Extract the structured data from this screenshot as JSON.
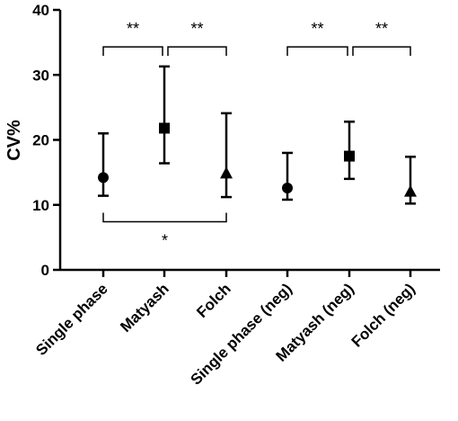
{
  "chart_data": {
    "type": "scatter",
    "ylabel": "CV%",
    "ylim": [
      0,
      40
    ],
    "yticks": [
      0,
      10,
      20,
      30,
      40
    ],
    "categories": [
      "Single phase",
      "Matyash",
      "Folch",
      "Single phase (neg)",
      "Matyash (neg)",
      "Folch (neg)"
    ],
    "points": [
      {
        "category": "Single phase",
        "value": 14.2,
        "low": 11.4,
        "high": 21.0,
        "marker": "circle"
      },
      {
        "category": "Matyash",
        "value": 21.8,
        "low": 16.4,
        "high": 31.3,
        "marker": "square"
      },
      {
        "category": "Folch",
        "value": 14.9,
        "low": 11.2,
        "high": 24.1,
        "marker": "triangle"
      },
      {
        "category": "Single phase (neg)",
        "value": 12.6,
        "low": 10.8,
        "high": 18.0,
        "marker": "circle"
      },
      {
        "category": "Matyash (neg)",
        "value": 17.5,
        "low": 14.0,
        "high": 22.8,
        "marker": "square"
      },
      {
        "category": "Folch (neg)",
        "value": 12.1,
        "low": 10.2,
        "high": 17.4,
        "marker": "triangle"
      }
    ],
    "significance": [
      {
        "from": 0,
        "to": 1,
        "label": "**",
        "position": "above",
        "level": 34.3
      },
      {
        "from": 1,
        "to": 2,
        "label": "**",
        "position": "above",
        "level": 34.3
      },
      {
        "from": 3,
        "to": 4,
        "label": "**",
        "position": "above",
        "level": 34.3
      },
      {
        "from": 4,
        "to": 5,
        "label": "**",
        "position": "above",
        "level": 34.3
      },
      {
        "from": 0,
        "to": 2,
        "label": "*",
        "position": "below",
        "level": 7.4
      }
    ],
    "grid": false,
    "legend": "none"
  }
}
